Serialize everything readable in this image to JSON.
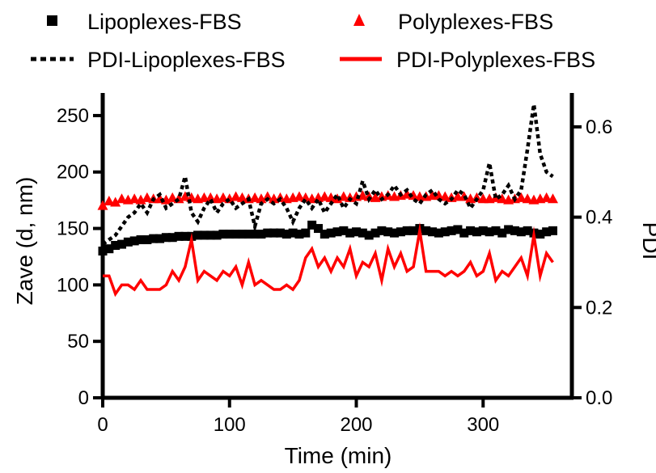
{
  "chart_data": {
    "type": "scatter",
    "xlabel": "Time (min)",
    "ylabel": "Zave (d, nm)",
    "y2label": "PDI",
    "xlim": [
      0,
      370
    ],
    "ylim": [
      0,
      270
    ],
    "y2lim": [
      0,
      0.675
    ],
    "x_ticks": [
      0,
      100,
      200,
      300
    ],
    "y_ticks": [
      0,
      50,
      100,
      150,
      200,
      250
    ],
    "y2_ticks": [
      0.0,
      0.2,
      0.4,
      0.6
    ],
    "y2_tick_labels": [
      "0.0",
      "0.2",
      "0.4",
      "0.6"
    ],
    "grid": false,
    "legend_position": "top",
    "colors": {
      "black": "#000000",
      "red": "#ff0000"
    },
    "legend": [
      {
        "label": "Lipoplexes-FBS",
        "marker": "square",
        "color": "#000000"
      },
      {
        "label": "Polyplexes-FBS",
        "marker": "triangle",
        "color": "#ff0000"
      },
      {
        "label": "PDI-Lipoplexes-FBS",
        "marker": "dashed-line",
        "color": "#000000"
      },
      {
        "label": "PDI-Polyplexes-FBS",
        "marker": "solid-line",
        "color": "#ff0000"
      }
    ],
    "series": [
      {
        "name": "Lipoplexes-FBS",
        "axis": "left",
        "style": "square",
        "color": "#000000",
        "x": [
          0,
          5,
          10,
          15,
          20,
          25,
          30,
          35,
          40,
          45,
          50,
          55,
          60,
          65,
          70,
          75,
          80,
          85,
          90,
          95,
          100,
          105,
          110,
          115,
          120,
          125,
          130,
          135,
          140,
          145,
          150,
          155,
          160,
          165,
          170,
          175,
          180,
          185,
          190,
          195,
          200,
          205,
          210,
          215,
          220,
          225,
          230,
          235,
          240,
          245,
          250,
          255,
          260,
          265,
          270,
          275,
          280,
          285,
          290,
          295,
          300,
          305,
          310,
          315,
          320,
          325,
          330,
          335,
          340,
          345,
          350,
          355
        ],
        "y": [
          130,
          132,
          135,
          136,
          138,
          139,
          140,
          140,
          141,
          141,
          142,
          142,
          143,
          143,
          143,
          144,
          144,
          144,
          144,
          145,
          145,
          145,
          145,
          145,
          145,
          145,
          146,
          146,
          146,
          145,
          146,
          145,
          146,
          153,
          150,
          145,
          146,
          147,
          148,
          146,
          147,
          146,
          144,
          146,
          148,
          147,
          146,
          147,
          148,
          148,
          150,
          148,
          147,
          146,
          147,
          148,
          149,
          146,
          148,
          147,
          148,
          147,
          148,
          146,
          149,
          148,
          147,
          148,
          146,
          145,
          147,
          148
        ]
      },
      {
        "name": "Polyplexes-FBS",
        "axis": "left",
        "style": "triangle",
        "color": "#ff0000",
        "x": [
          0,
          5,
          10,
          15,
          20,
          25,
          30,
          35,
          40,
          45,
          50,
          55,
          60,
          65,
          70,
          75,
          80,
          85,
          90,
          95,
          100,
          105,
          110,
          115,
          120,
          125,
          130,
          135,
          140,
          145,
          150,
          155,
          160,
          165,
          170,
          175,
          180,
          185,
          190,
          195,
          200,
          205,
          210,
          215,
          220,
          225,
          230,
          235,
          240,
          245,
          250,
          255,
          260,
          265,
          270,
          275,
          280,
          285,
          290,
          295,
          300,
          305,
          310,
          315,
          320,
          325,
          330,
          335,
          340,
          345,
          350,
          355
        ],
        "y": [
          170,
          174,
          173,
          176,
          175,
          176,
          175,
          177,
          176,
          176,
          175,
          177,
          176,
          178,
          177,
          176,
          177,
          177,
          176,
          177,
          176,
          178,
          177,
          176,
          177,
          176,
          178,
          176,
          177,
          176,
          177,
          178,
          177,
          176,
          177,
          178,
          177,
          176,
          178,
          177,
          178,
          179,
          178,
          177,
          178,
          179,
          178,
          179,
          180,
          179,
          178,
          178,
          179,
          179,
          178,
          177,
          178,
          178,
          176,
          177,
          176,
          176,
          177,
          176,
          175,
          176,
          177,
          176,
          175,
          176,
          177,
          176
        ]
      },
      {
        "name": "PDI-Lipoplexes-FBS",
        "axis": "right",
        "style": "dashed",
        "color": "#000000",
        "x": [
          0,
          5,
          10,
          15,
          20,
          25,
          30,
          35,
          40,
          45,
          50,
          55,
          60,
          65,
          70,
          75,
          80,
          85,
          90,
          95,
          100,
          105,
          110,
          115,
          120,
          125,
          130,
          135,
          140,
          145,
          150,
          155,
          160,
          165,
          170,
          175,
          180,
          185,
          190,
          195,
          200,
          205,
          210,
          215,
          220,
          225,
          230,
          235,
          240,
          245,
          250,
          255,
          260,
          265,
          270,
          275,
          280,
          285,
          290,
          295,
          300,
          305,
          310,
          315,
          320,
          325,
          330,
          335,
          340,
          345,
          350,
          355
        ],
        "y": [
          0.34,
          0.35,
          0.36,
          0.38,
          0.4,
          0.41,
          0.43,
          0.41,
          0.44,
          0.45,
          0.42,
          0.43,
          0.44,
          0.49,
          0.41,
          0.39,
          0.42,
          0.44,
          0.41,
          0.43,
          0.44,
          0.42,
          0.43,
          0.44,
          0.38,
          0.43,
          0.44,
          0.43,
          0.44,
          0.42,
          0.39,
          0.42,
          0.44,
          0.42,
          0.44,
          0.41,
          0.43,
          0.45,
          0.42,
          0.44,
          0.43,
          0.48,
          0.44,
          0.46,
          0.44,
          0.45,
          0.47,
          0.45,
          0.46,
          0.44,
          0.43,
          0.45,
          0.46,
          0.44,
          0.43,
          0.44,
          0.46,
          0.45,
          0.42,
          0.44,
          0.46,
          0.52,
          0.44,
          0.45,
          0.47,
          0.44,
          0.46,
          0.55,
          0.65,
          0.54,
          0.5,
          0.49
        ]
      },
      {
        "name": "PDI-Polyplexes-FBS",
        "axis": "right",
        "style": "solid",
        "color": "#ff0000",
        "x": [
          0,
          5,
          10,
          15,
          20,
          25,
          30,
          35,
          40,
          45,
          50,
          55,
          60,
          65,
          70,
          75,
          80,
          85,
          90,
          95,
          100,
          105,
          110,
          115,
          120,
          125,
          130,
          135,
          140,
          145,
          150,
          155,
          160,
          165,
          170,
          175,
          180,
          185,
          190,
          195,
          200,
          205,
          210,
          215,
          220,
          225,
          230,
          235,
          240,
          245,
          250,
          255,
          260,
          265,
          270,
          275,
          280,
          285,
          290,
          295,
          300,
          305,
          310,
          315,
          320,
          325,
          330,
          335,
          340,
          345,
          350,
          355
        ],
        "y": [
          0.27,
          0.27,
          0.23,
          0.25,
          0.25,
          0.24,
          0.26,
          0.24,
          0.24,
          0.24,
          0.25,
          0.28,
          0.26,
          0.29,
          0.35,
          0.26,
          0.28,
          0.27,
          0.26,
          0.28,
          0.27,
          0.29,
          0.25,
          0.3,
          0.25,
          0.26,
          0.25,
          0.24,
          0.24,
          0.25,
          0.24,
          0.26,
          0.31,
          0.33,
          0.29,
          0.31,
          0.28,
          0.31,
          0.29,
          0.33,
          0.27,
          0.3,
          0.29,
          0.32,
          0.26,
          0.33,
          0.29,
          0.32,
          0.28,
          0.29,
          0.37,
          0.28,
          0.28,
          0.28,
          0.27,
          0.28,
          0.27,
          0.28,
          0.3,
          0.27,
          0.28,
          0.32,
          0.26,
          0.28,
          0.27,
          0.29,
          0.31,
          0.27,
          0.36,
          0.27,
          0.32,
          0.3
        ]
      }
    ]
  }
}
